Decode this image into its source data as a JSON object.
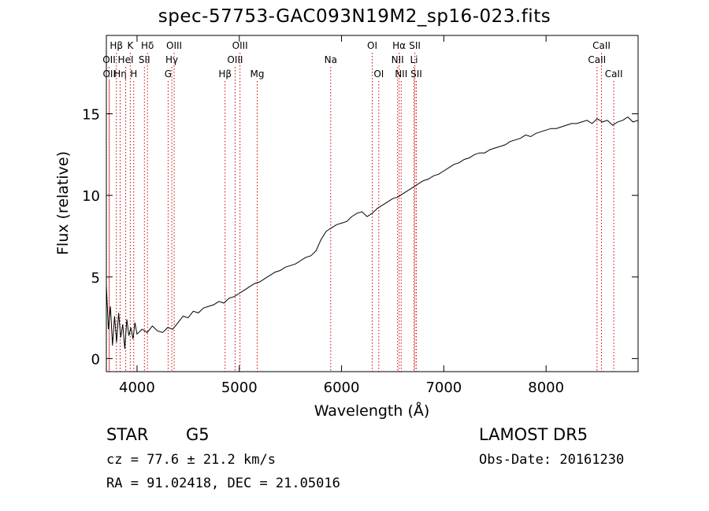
{
  "chart_data": {
    "type": "line",
    "title": "spec-57753-GAC093N19M2_sp16-023.fits",
    "xlabel": "Wavelength (Å)",
    "ylabel": "Flux (relative)",
    "xlim": [
      3700,
      8900
    ],
    "ylim": [
      -0.8,
      19.8
    ],
    "x_ticks": [
      4000,
      5000,
      6000,
      7000,
      8000
    ],
    "y_ticks": [
      0,
      5,
      10,
      15
    ],
    "grid": false,
    "line_color": "#000000",
    "marker_color": "#cc0000",
    "series": [
      {
        "x": [
          3700,
          3720,
          3740,
          3760,
          3780,
          3800,
          3820,
          3840,
          3860,
          3880,
          3900,
          3920,
          3940,
          3960,
          3980,
          4000,
          4050,
          4100,
          4150,
          4200,
          4250,
          4300,
          4350,
          4400,
          4450,
          4500,
          4550,
          4600,
          4650,
          4700,
          4750,
          4800,
          4850,
          4900,
          4950,
          5000,
          5050,
          5100,
          5150,
          5200,
          5250,
          5300,
          5350,
          5400,
          5450,
          5500,
          5550,
          5600,
          5650,
          5700,
          5750,
          5800,
          5850,
          5900,
          5950,
          6000,
          6050,
          6100,
          6150,
          6200,
          6250,
          6300,
          6350,
          6400,
          6450,
          6500,
          6550,
          6600,
          6650,
          6700,
          6750,
          6800,
          6850,
          6900,
          6950,
          7000,
          7050,
          7100,
          7150,
          7200,
          7250,
          7300,
          7350,
          7400,
          7450,
          7500,
          7550,
          7600,
          7650,
          7700,
          7750,
          7800,
          7850,
          7900,
          7950,
          8000,
          8050,
          8100,
          8150,
          8200,
          8250,
          8300,
          8350,
          8400,
          8450,
          8500,
          8550,
          8600,
          8650,
          8700,
          8750,
          8800,
          8850,
          8900
        ],
        "y": [
          4.5,
          1.8,
          3.2,
          0.8,
          2.6,
          1.0,
          2.8,
          1.3,
          2.1,
          0.6,
          2.4,
          1.4,
          1.9,
          1.2,
          2.2,
          1.5,
          1.8,
          1.6,
          2.0,
          1.7,
          1.6,
          1.9,
          1.8,
          2.2,
          2.6,
          2.5,
          2.9,
          2.8,
          3.1,
          3.2,
          3.3,
          3.5,
          3.4,
          3.7,
          3.8,
          4.0,
          4.2,
          4.4,
          4.6,
          4.7,
          4.9,
          5.1,
          5.3,
          5.4,
          5.6,
          5.7,
          5.8,
          6.0,
          6.2,
          6.3,
          6.6,
          7.3,
          7.8,
          8.0,
          8.2,
          8.3,
          8.4,
          8.7,
          8.9,
          9.0,
          8.7,
          8.9,
          9.2,
          9.4,
          9.6,
          9.8,
          9.9,
          10.1,
          10.3,
          10.5,
          10.7,
          10.9,
          11.0,
          11.2,
          11.3,
          11.5,
          11.7,
          11.9,
          12.0,
          12.2,
          12.3,
          12.5,
          12.6,
          12.6,
          12.8,
          12.9,
          13.0,
          13.1,
          13.3,
          13.4,
          13.5,
          13.7,
          13.6,
          13.8,
          13.9,
          14.0,
          14.1,
          14.1,
          14.2,
          14.3,
          14.4,
          14.4,
          14.5,
          14.6,
          14.4,
          14.7,
          14.5,
          14.6,
          14.3,
          14.5,
          14.6,
          14.8,
          14.5,
          14.6
        ]
      }
    ],
    "line_markers": [
      {
        "label": "Hβ",
        "x": 3798,
        "row": 0
      },
      {
        "label": "OII",
        "x": 3727,
        "row": 1
      },
      {
        "label": "OII",
        "x": 3729,
        "row": 2
      },
      {
        "label": "Hη",
        "x": 3835,
        "row": 2
      },
      {
        "label": "HeI",
        "x": 3889,
        "row": 1
      },
      {
        "label": "K",
        "x": 3934,
        "row": 0
      },
      {
        "label": "H",
        "x": 3968,
        "row": 2
      },
      {
        "label": "Hδ",
        "x": 4102,
        "row": 0
      },
      {
        "label": "SII",
        "x": 4072,
        "row": 1
      },
      {
        "label": "OIII",
        "x": 4363,
        "row": 0
      },
      {
        "label": "Hγ",
        "x": 4340,
        "row": 1
      },
      {
        "label": "G",
        "x": 4304,
        "row": 2
      },
      {
        "label": "Hβ",
        "x": 4861,
        "row": 2
      },
      {
        "label": "OIII",
        "x": 5007,
        "row": 0
      },
      {
        "label": "OIII",
        "x": 4959,
        "row": 1
      },
      {
        "label": "Mg",
        "x": 5175,
        "row": 2
      },
      {
        "label": "Na",
        "x": 5894,
        "row": 1
      },
      {
        "label": "OI",
        "x": 6300,
        "row": 0
      },
      {
        "label": "OI",
        "x": 6364,
        "row": 2
      },
      {
        "label": "Hα",
        "x": 6563,
        "row": 0
      },
      {
        "label": "NII",
        "x": 6548,
        "row": 1
      },
      {
        "label": "NII",
        "x": 6583,
        "row": 2
      },
      {
        "label": "SII",
        "x": 6717,
        "row": 0
      },
      {
        "label": "Li",
        "x": 6708,
        "row": 1
      },
      {
        "label": "SII",
        "x": 6731,
        "row": 2
      },
      {
        "label": "CaII",
        "x": 8542,
        "row": 0
      },
      {
        "label": "CaII",
        "x": 8498,
        "row": 1
      },
      {
        "label": "CaII",
        "x": 8662,
        "row": 2
      }
    ]
  },
  "info": {
    "class": "STAR",
    "subclass": "G5",
    "survey": "LAMOST DR5",
    "redshift": "cz = 77.6 ± 21.2 km/s",
    "obs_date": "Obs-Date: 20161230",
    "coords": "RA =  91.02418, DEC =  21.05016"
  }
}
